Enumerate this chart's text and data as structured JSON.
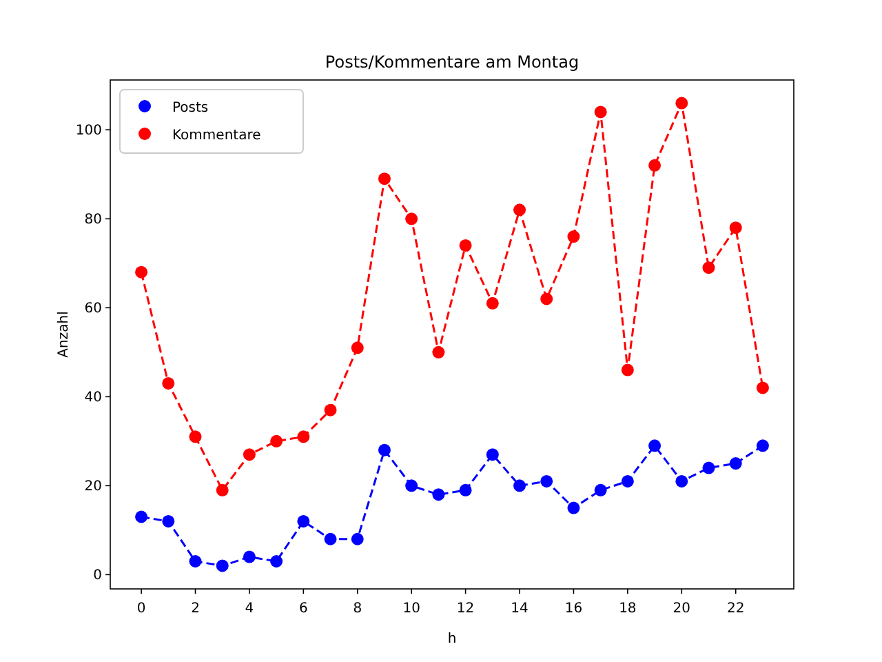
{
  "chart_data": {
    "type": "line",
    "title": "Posts/Kommentare am Montag",
    "xlabel": "h",
    "ylabel": "Anzahl",
    "x": [
      0,
      1,
      2,
      3,
      4,
      5,
      6,
      7,
      8,
      9,
      10,
      11,
      12,
      13,
      14,
      15,
      16,
      17,
      18,
      19,
      20,
      21,
      22,
      23
    ],
    "series": [
      {
        "name": "Posts",
        "color": "#0000ff",
        "values": [
          13,
          12,
          3,
          2,
          4,
          3,
          12,
          8,
          8,
          28,
          20,
          18,
          19,
          27,
          20,
          21,
          15,
          19,
          21,
          29,
          21,
          24,
          25,
          29
        ]
      },
      {
        "name": "Kommentare",
        "color": "#ff0000",
        "values": [
          68,
          43,
          31,
          19,
          27,
          30,
          31,
          37,
          51,
          89,
          80,
          50,
          74,
          61,
          82,
          62,
          76,
          104,
          46,
          92,
          106,
          69,
          78,
          42
        ]
      }
    ],
    "xlim": [
      -1.15,
      24.15
    ],
    "xticks": [
      0,
      2,
      4,
      6,
      8,
      10,
      12,
      14,
      16,
      18,
      20,
      22
    ],
    "ylim": [
      -3.2,
      111.2
    ],
    "yticks": [
      0,
      20,
      40,
      60,
      80,
      100
    ],
    "grid": false,
    "legend": "top left",
    "marker": "circle",
    "line_style": "dashed"
  }
}
